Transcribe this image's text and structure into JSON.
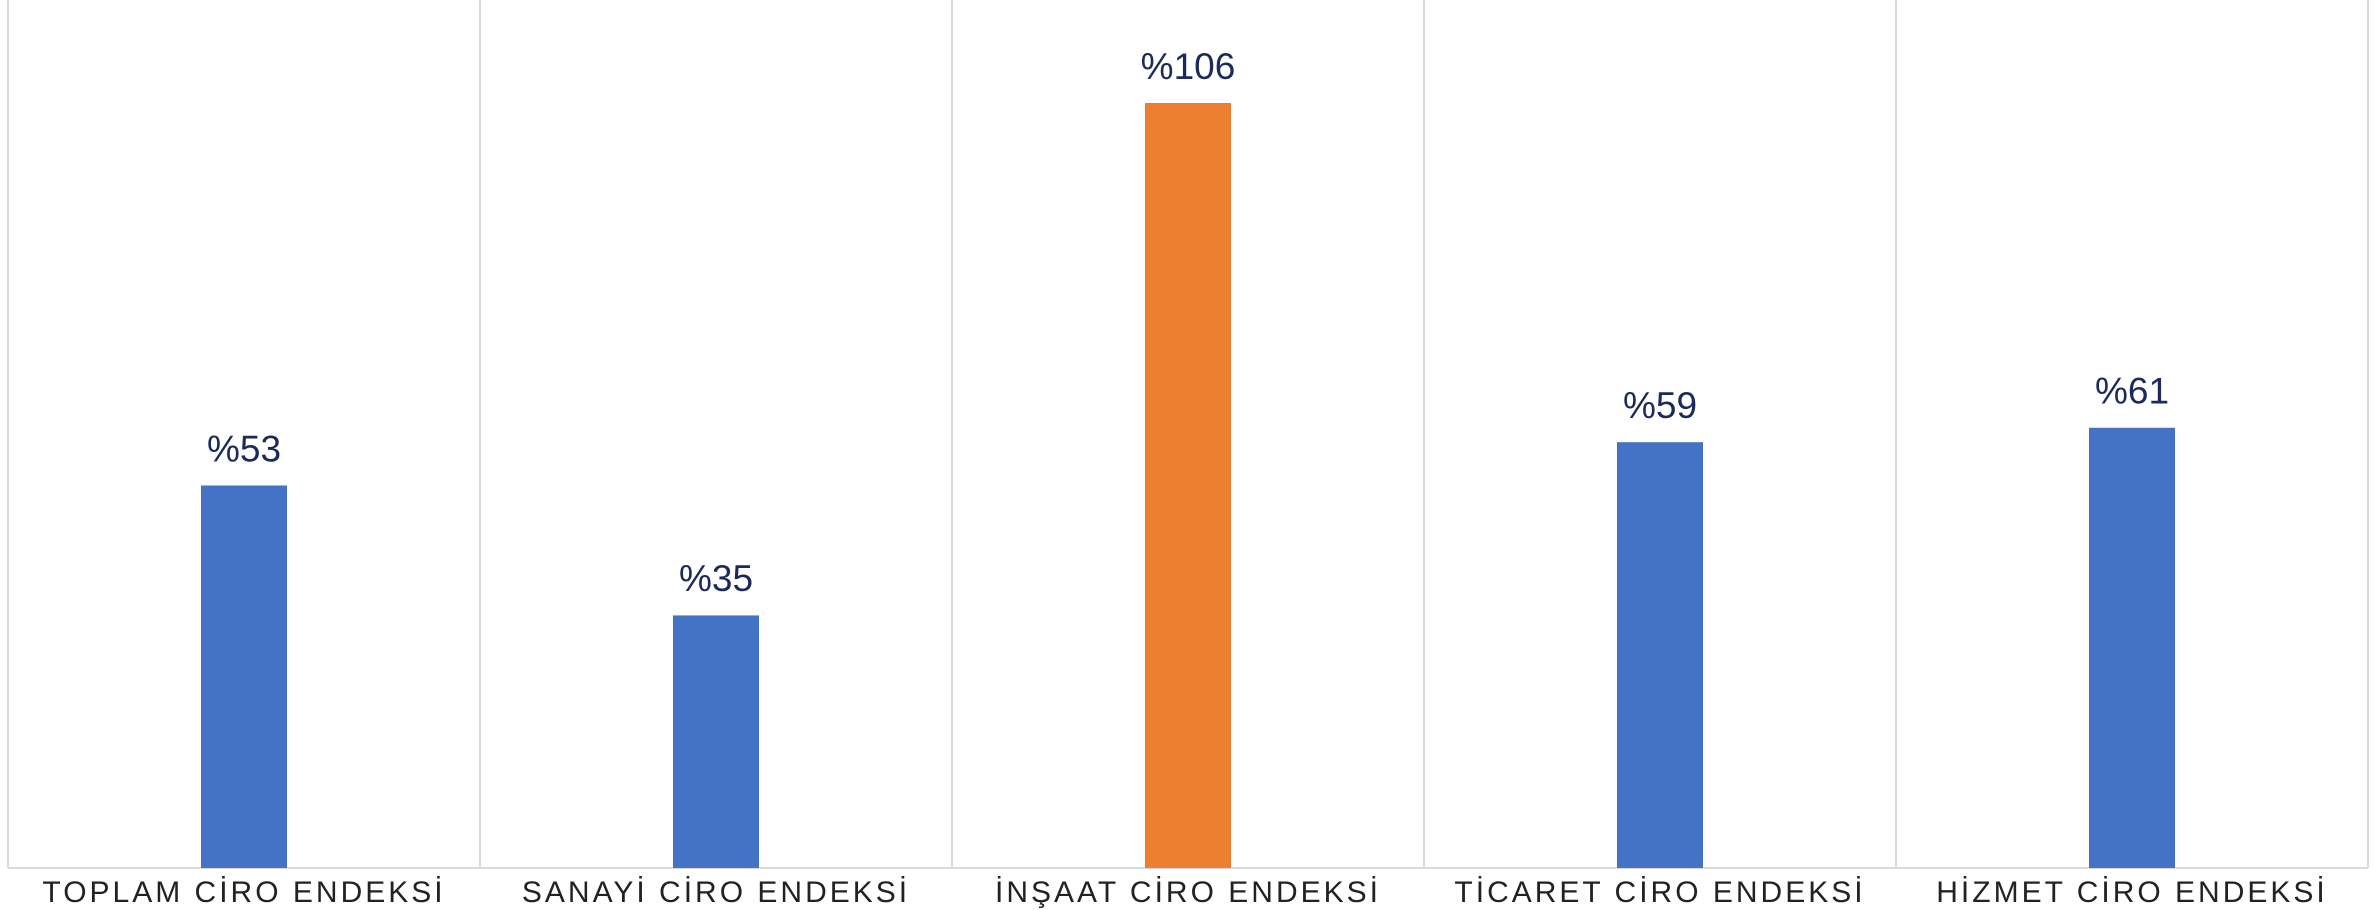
{
  "chart_data": {
    "type": "bar",
    "categories": [
      "TOPLAM CİRO ENDEKSİ",
      "SANAYİ CİRO ENDEKSİ",
      "İNŞAAT CİRO ENDEKSİ",
      "TİCARET CİRO ENDEKSİ",
      "HİZMET CİRO ENDEKSİ"
    ],
    "values": [
      53,
      35,
      106,
      59,
      61
    ],
    "value_labels": [
      "%53",
      "%35",
      "%106",
      "%59",
      "%61"
    ],
    "colors": [
      "#4472c4",
      "#4472c4",
      "#ed7d31",
      "#4472c4",
      "#4472c4"
    ]
  }
}
